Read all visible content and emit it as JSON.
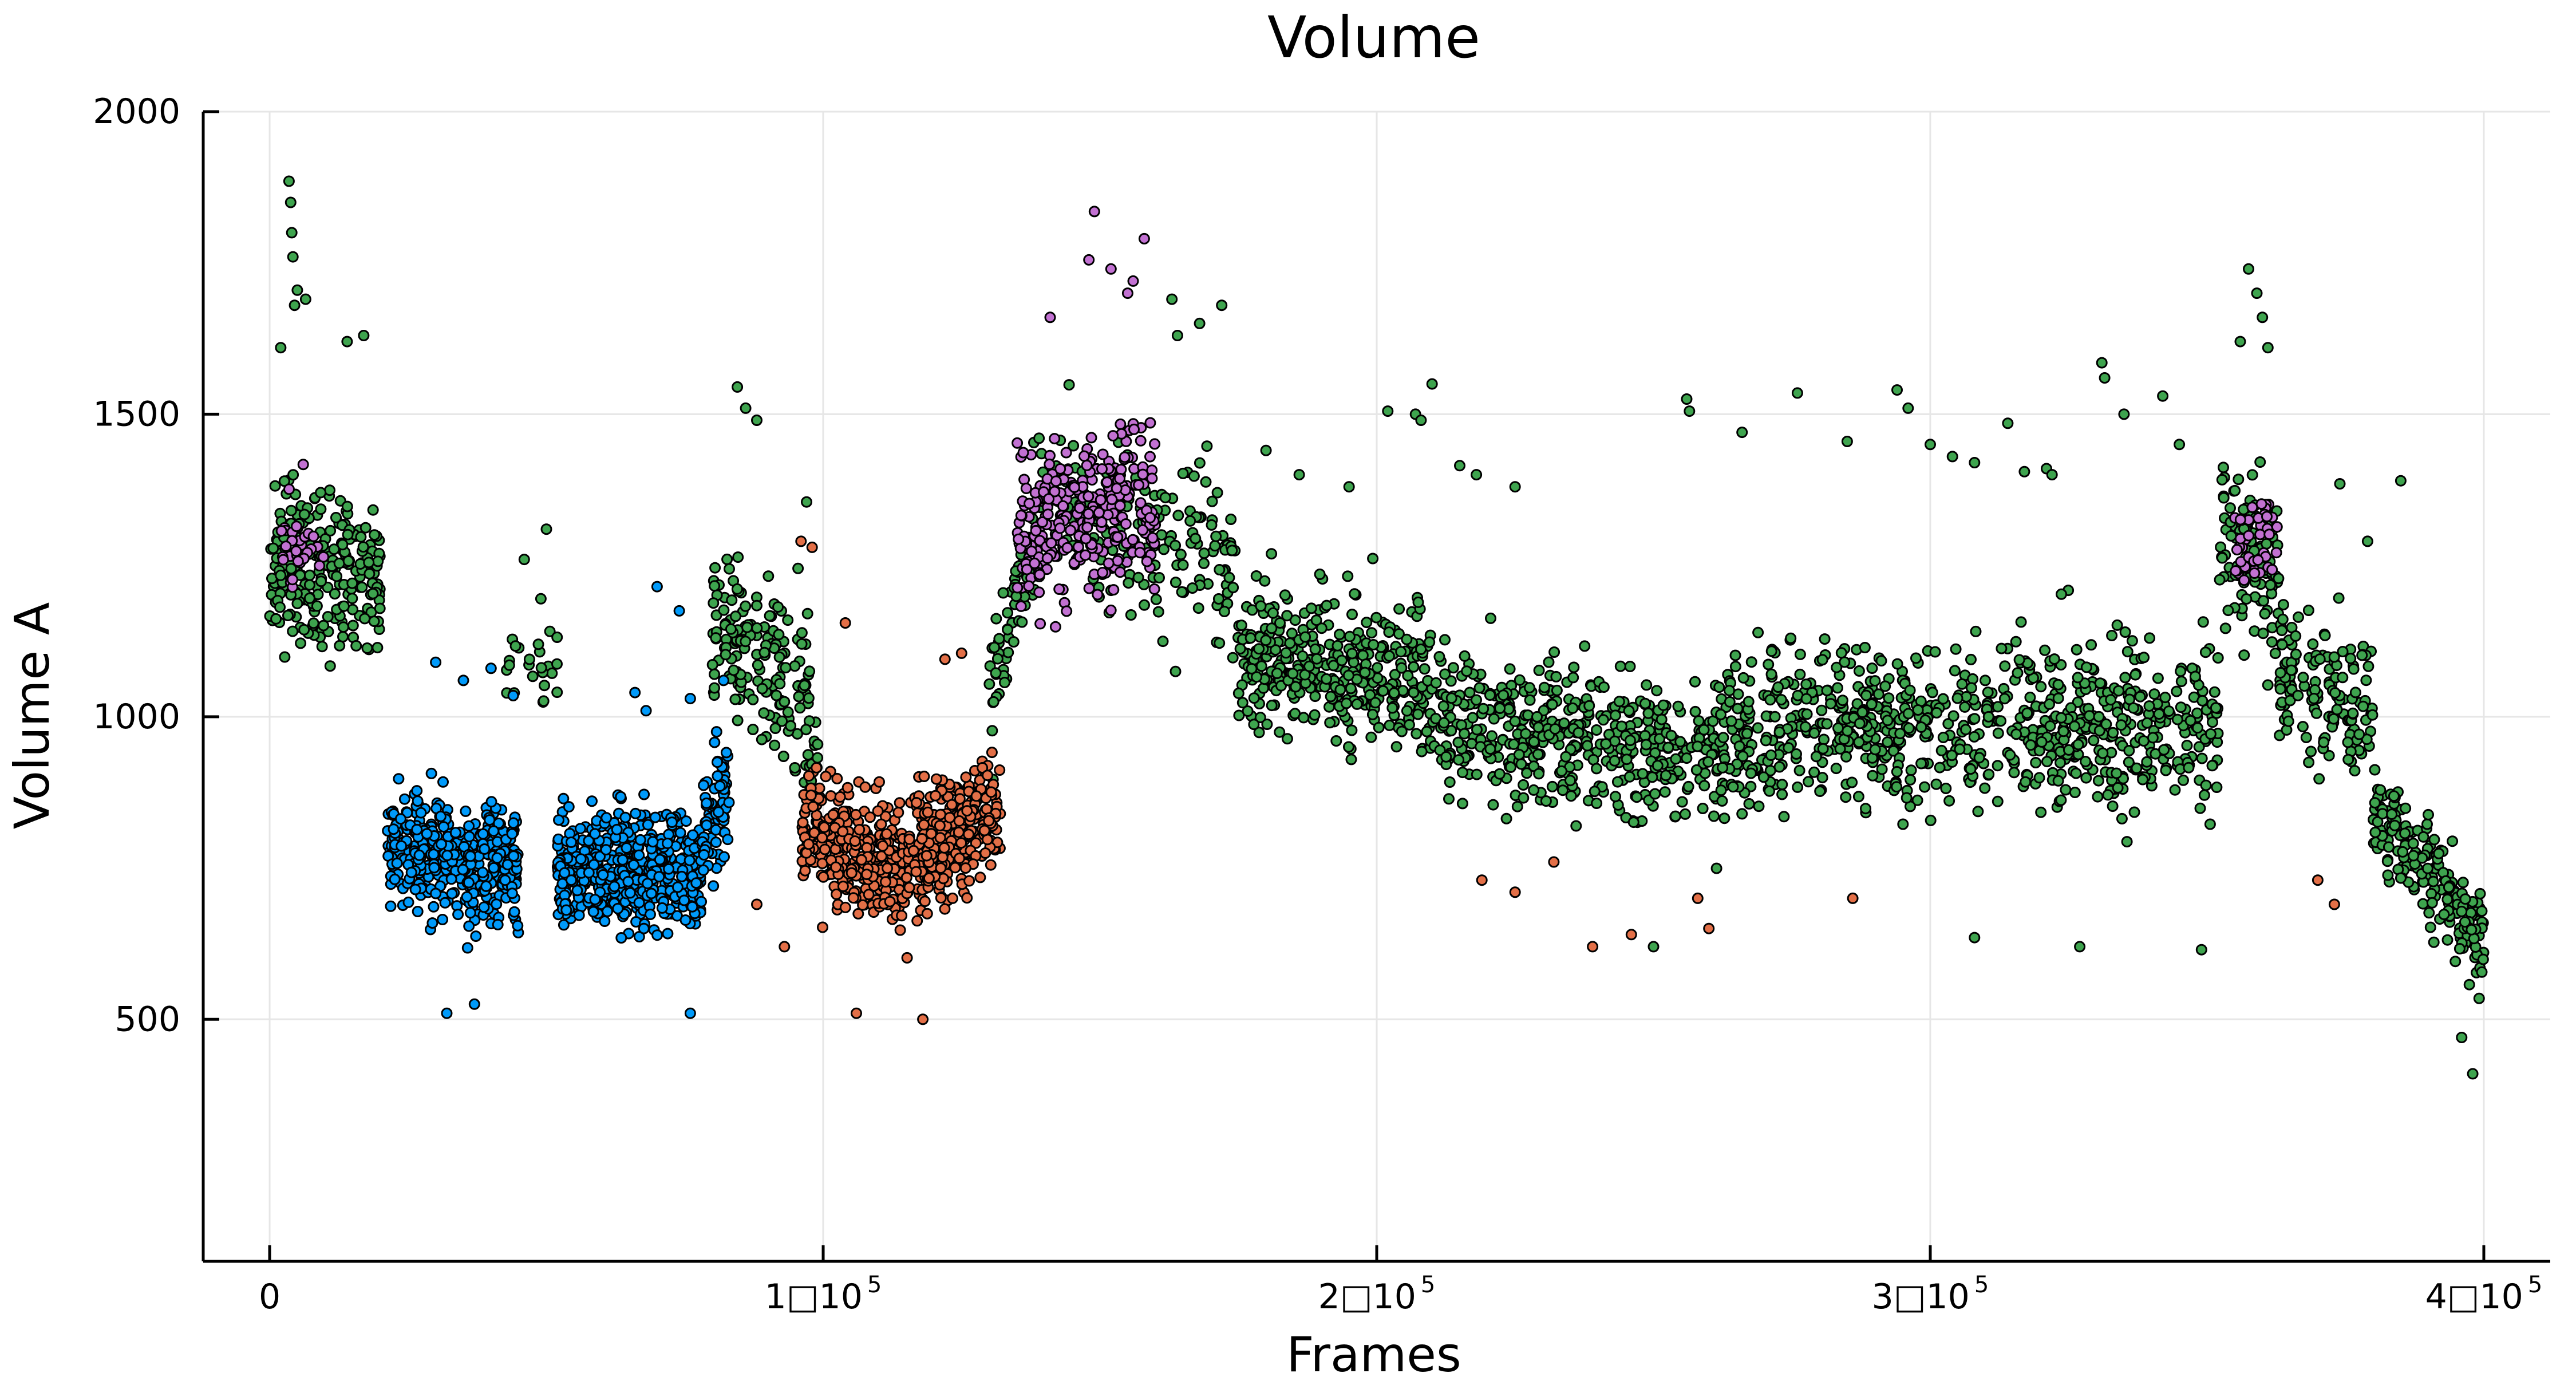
{
  "chart_data": {
    "type": "scatter",
    "title": "Volume",
    "xlabel": "Frames",
    "ylabel": "Volume A",
    "xlim": [
      -12000,
      412000
    ],
    "ylim": [
      100,
      2000
    ],
    "x_ticks": [
      {
        "value": 0,
        "label": "0",
        "exp": ""
      },
      {
        "value": 100000,
        "label": "1□10",
        "exp": "5"
      },
      {
        "value": 200000,
        "label": "2□10",
        "exp": "5"
      },
      {
        "value": 300000,
        "label": "3□10",
        "exp": "5"
      },
      {
        "value": 400000,
        "label": "4□10",
        "exp": "5"
      }
    ],
    "y_ticks": [
      {
        "value": 500,
        "label": "500"
      },
      {
        "value": 1000,
        "label": "1000"
      },
      {
        "value": 1500,
        "label": "1500"
      },
      {
        "value": 2000,
        "label": "2000"
      }
    ],
    "grid": true,
    "legend": "none",
    "colors": {
      "blue": "#009afa",
      "red": "#e36f47",
      "green": "#3ea44e",
      "purple": "#c271d2"
    },
    "series": [
      {
        "color": "#3ea44e",
        "segments": [
          {
            "x": [
              0,
              20000
            ],
            "mean": [
              1250,
              1230
            ],
            "spread": 170,
            "n": 240
          },
          {
            "x": [
              42000,
              52000
            ],
            "mean": [
              1080,
              1090
            ],
            "spread": 90,
            "n": 24
          },
          {
            "x": [
              80000,
              99000
            ],
            "mean": [
              1180,
              1000
            ],
            "spread": 180,
            "n": 170
          },
          {
            "x": [
              130000,
              138000
            ],
            "mean": [
              1050,
              1300
            ],
            "spread": 150,
            "n": 60
          },
          {
            "x": [
              138000,
              175000
            ],
            "mean": [
              1350,
              1250
            ],
            "spread": 180,
            "n": 200
          },
          {
            "x": [
              175000,
              210000
            ],
            "mean": [
              1100,
              1050
            ],
            "spread": 160,
            "n": 360
          },
          {
            "x": [
              210000,
              262000
            ],
            "mean": [
              1000,
              920
            ],
            "spread": 160,
            "n": 460
          },
          {
            "x": [
              262000,
              287000
            ],
            "mean": [
              950,
              1020
            ],
            "spread": 170,
            "n": 220
          },
          {
            "x": [
              287000,
              352000
            ],
            "mean": [
              990,
              990
            ],
            "spread": 170,
            "n": 560
          },
          {
            "x": [
              352000,
              363000
            ],
            "mean": [
              1300,
              1250
            ],
            "spread": 190,
            "n": 110
          },
          {
            "x": [
              363000,
              380000
            ],
            "mean": [
              1080,
              1000
            ],
            "spread": 160,
            "n": 140
          },
          {
            "x": [
              380000,
              400000
            ],
            "mean": [
              850,
              630
            ],
            "spread": 110,
            "n": 200
          }
        ],
        "outliers": [
          [
            3500,
            1885
          ],
          [
            3800,
            1850
          ],
          [
            4000,
            1800
          ],
          [
            4200,
            1760
          ],
          [
            5000,
            1705
          ],
          [
            4500,
            1680
          ],
          [
            6500,
            1690
          ],
          [
            14000,
            1620
          ],
          [
            17000,
            1630
          ],
          [
            2000,
            1610
          ],
          [
            50000,
            1310
          ],
          [
            46000,
            1260
          ],
          [
            49000,
            1195
          ],
          [
            84500,
            1545
          ],
          [
            86000,
            1510
          ],
          [
            88000,
            1490
          ],
          [
            97000,
            1355
          ],
          [
            163000,
            1690
          ],
          [
            172000,
            1680
          ],
          [
            168000,
            1650
          ],
          [
            164000,
            1630
          ],
          [
            180000,
            1440
          ],
          [
            186000,
            1400
          ],
          [
            195000,
            1380
          ],
          [
            202000,
            1505
          ],
          [
            207000,
            1500
          ],
          [
            208000,
            1490
          ],
          [
            210000,
            1550
          ],
          [
            215000,
            1415
          ],
          [
            218000,
            1400
          ],
          [
            225000,
            1380
          ],
          [
            256000,
            1525
          ],
          [
            256500,
            1505
          ],
          [
            266000,
            1470
          ],
          [
            276000,
            1535
          ],
          [
            285000,
            1455
          ],
          [
            294000,
            1540
          ],
          [
            296000,
            1510
          ],
          [
            300000,
            1450
          ],
          [
            304000,
            1430
          ],
          [
            308000,
            1420
          ],
          [
            314000,
            1485
          ],
          [
            317000,
            1405
          ],
          [
            321000,
            1410
          ],
          [
            322000,
            1400
          ],
          [
            331000,
            1585
          ],
          [
            331500,
            1560
          ],
          [
            335000,
            1500
          ],
          [
            342000,
            1530
          ],
          [
            345000,
            1450
          ],
          [
            357500,
            1740
          ],
          [
            359000,
            1700
          ],
          [
            360000,
            1660
          ],
          [
            361000,
            1610
          ],
          [
            356000,
            1620
          ],
          [
            374000,
            1385
          ],
          [
            379000,
            1290
          ],
          [
            327000,
            620
          ],
          [
            349000,
            615
          ],
          [
            308000,
            635
          ],
          [
            250000,
            620
          ],
          [
            398000,
            410
          ],
          [
            396000,
            470
          ],
          [
            385000,
            1390
          ]
        ]
      },
      {
        "color": "#009afa",
        "segments": [
          {
            "x": [
              21000,
              45000
            ],
            "mean": [
              790,
              740
            ],
            "spread": 120,
            "n": 420
          },
          {
            "x": [
              52000,
              78000
            ],
            "mean": [
              750,
              740
            ],
            "spread": 120,
            "n": 520
          },
          {
            "x": [
              78000,
              83000
            ],
            "mean": [
              800,
              900
            ],
            "spread": 120,
            "n": 80
          }
        ],
        "outliers": [
          [
            66000,
            1040
          ],
          [
            68000,
            1010
          ],
          [
            70000,
            1215
          ],
          [
            74000,
            1175
          ],
          [
            76000,
            1030
          ],
          [
            30000,
            1090
          ],
          [
            35000,
            1060
          ],
          [
            40000,
            1080
          ],
          [
            44000,
            1035
          ],
          [
            82000,
            1060
          ],
          [
            32000,
            510
          ],
          [
            76000,
            510
          ],
          [
            37000,
            525
          ]
        ]
      },
      {
        "color": "#e36f47",
        "segments": [
          {
            "x": [
              96000,
              115000
            ],
            "mean": [
              820,
              740
            ],
            "spread": 120,
            "n": 330
          },
          {
            "x": [
              115000,
              132000
            ],
            "mean": [
              760,
              850
            ],
            "spread": 120,
            "n": 300
          }
        ],
        "outliers": [
          [
            96000,
            1290
          ],
          [
            98000,
            1280
          ],
          [
            104000,
            1155
          ],
          [
            122000,
            1095
          ],
          [
            125000,
            1105
          ],
          [
            118000,
            500
          ],
          [
            106000,
            510
          ],
          [
            93000,
            620
          ],
          [
            88000,
            690
          ],
          [
            225000,
            710
          ],
          [
            239000,
            620
          ],
          [
            246000,
            640
          ],
          [
            258000,
            700
          ],
          [
            260000,
            650
          ],
          [
            286000,
            700
          ],
          [
            370000,
            730
          ],
          [
            373000,
            690
          ],
          [
            219000,
            730
          ],
          [
            232000,
            760
          ]
        ]
      },
      {
        "color": "#c271d2",
        "segments": [
          {
            "x": [
              135000,
              160000
            ],
            "mean": [
              1300,
              1350
            ],
            "spread": 160,
            "n": 300
          },
          {
            "x": [
              355000,
              363000
            ],
            "mean": [
              1280,
              1300
            ],
            "spread": 120,
            "n": 40
          },
          {
            "x": [
              2000,
              10000
            ],
            "mean": [
              1280,
              1300
            ],
            "spread": 110,
            "n": 30
          }
        ],
        "outliers": [
          [
            149000,
            1835
          ],
          [
            158000,
            1790
          ],
          [
            148000,
            1755
          ],
          [
            152000,
            1740
          ],
          [
            141000,
            1660
          ],
          [
            156000,
            1720
          ],
          [
            155000,
            1700
          ]
        ]
      }
    ]
  }
}
